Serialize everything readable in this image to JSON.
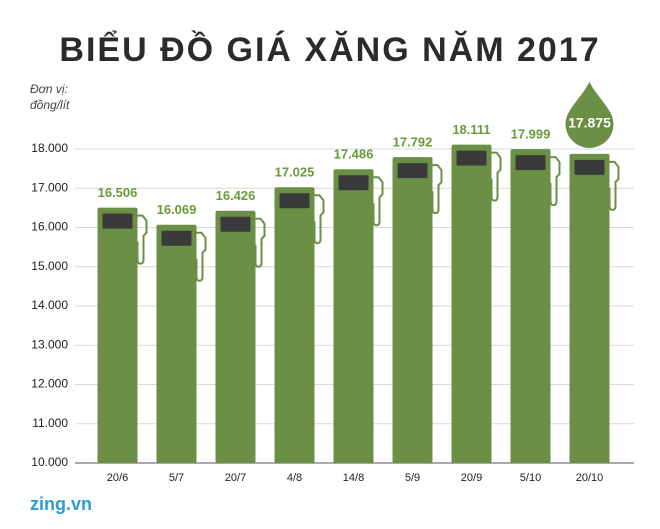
{
  "chart_data": {
    "type": "bar",
    "title": "BIỂU ĐỒ GIÁ XĂNG NĂM 2017",
    "unit_label": [
      "Đơn vị:",
      "đồng/lít"
    ],
    "source": "zing.vn",
    "categories": [
      "20/6",
      "5/7",
      "20/7",
      "4/8",
      "14/8",
      "5/9",
      "20/9",
      "5/10",
      "20/10"
    ],
    "values": [
      16506,
      16069,
      16426,
      17025,
      17486,
      17792,
      18111,
      17999,
      17875
    ],
    "value_labels": [
      "16.506",
      "16.069",
      "16.426",
      "17.025",
      "17.486",
      "17.792",
      "18.111",
      "17.999",
      "17.875"
    ],
    "color": "#6b8f45",
    "ylim": [
      10000,
      18500
    ],
    "yticks": [
      {
        "value": 10000,
        "label": "10.000"
      },
      {
        "value": 11000,
        "label": "11.000"
      },
      {
        "value": 12000,
        "label": "12.000"
      },
      {
        "value": 13000,
        "label": "13.000"
      },
      {
        "value": 14000,
        "label": "14.000"
      },
      {
        "value": 15000,
        "label": "15.000"
      },
      {
        "value": 16000,
        "label": "16.000"
      },
      {
        "value": 17000,
        "label": "17.000"
      },
      {
        "value": 18000,
        "label": "18.000"
      }
    ],
    "grid": true
  }
}
